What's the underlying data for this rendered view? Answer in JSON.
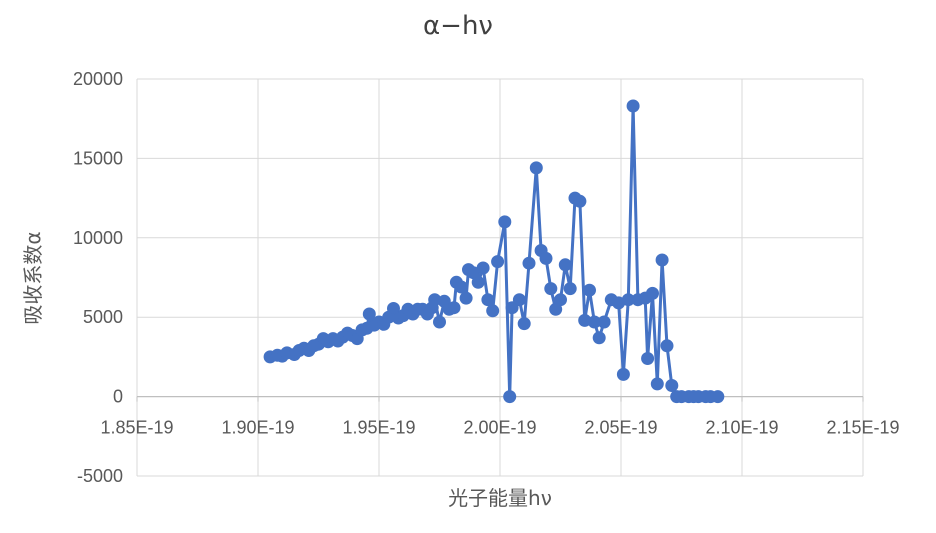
{
  "chart_data": {
    "type": "line",
    "title": "α−hν",
    "xlabel": "光子能量hν",
    "ylabel": "吸收系数α",
    "xlim": [
      1.85e-19,
      2.15e-19
    ],
    "ylim": [
      -5000,
      20000
    ],
    "x_ticks": [
      1.85e-19,
      1.9e-19,
      1.95e-19,
      2e-19,
      2.05e-19,
      2.1e-19,
      2.15e-19
    ],
    "x_tick_labels": [
      "1.85E-19",
      "1.90E-19",
      "1.95E-19",
      "2.00E-19",
      "2.05E-19",
      "2.10E-19",
      "2.15E-19"
    ],
    "y_ticks": [
      -5000,
      0,
      5000,
      10000,
      15000,
      20000
    ],
    "y_tick_labels": [
      "-5000",
      "0",
      "5000",
      "10000",
      "15000",
      "20000"
    ],
    "grid": true,
    "legend": "none",
    "series": [
      {
        "color": "#4472C4",
        "markers": true,
        "points": [
          [
            1.905e-19,
            2500
          ],
          [
            1.908e-19,
            2600
          ],
          [
            1.91e-19,
            2550
          ],
          [
            1.912e-19,
            2750
          ],
          [
            1.915e-19,
            2650
          ],
          [
            1.917e-19,
            2900
          ],
          [
            1.919e-19,
            3050
          ],
          [
            1.921e-19,
            2900
          ],
          [
            1.923e-19,
            3200
          ],
          [
            1.925e-19,
            3300
          ],
          [
            1.927e-19,
            3650
          ],
          [
            1.929e-19,
            3450
          ],
          [
            1.931e-19,
            3650
          ],
          [
            1.933e-19,
            3500
          ],
          [
            1.935e-19,
            3750
          ],
          [
            1.937e-19,
            4000
          ],
          [
            1.939e-19,
            3850
          ],
          [
            1.941e-19,
            3650
          ],
          [
            1.943e-19,
            4200
          ],
          [
            1.945e-19,
            4300
          ],
          [
            1.946e-19,
            5200
          ],
          [
            1.948e-19,
            4500
          ],
          [
            1.95e-19,
            4700
          ],
          [
            1.952e-19,
            4550
          ],
          [
            1.954e-19,
            5000
          ],
          [
            1.956e-19,
            5550
          ],
          [
            1.958e-19,
            4950
          ],
          [
            1.96e-19,
            5100
          ],
          [
            1.962e-19,
            5500
          ],
          [
            1.964e-19,
            5200
          ],
          [
            1.966e-19,
            5500
          ],
          [
            1.968e-19,
            5500
          ],
          [
            1.97e-19,
            5200
          ],
          [
            1.972e-19,
            5600
          ],
          [
            1.973e-19,
            6100
          ],
          [
            1.975e-19,
            4700
          ],
          [
            1.977e-19,
            6000
          ],
          [
            1.979e-19,
            5500
          ],
          [
            1.981e-19,
            5600
          ],
          [
            1.982e-19,
            7200
          ],
          [
            1.984e-19,
            6900
          ],
          [
            1.986e-19,
            6200
          ],
          [
            1.987e-19,
            8000
          ],
          [
            1.989e-19,
            7800
          ],
          [
            1.991e-19,
            7200
          ],
          [
            1.993e-19,
            8100
          ],
          [
            1.995e-19,
            6100
          ],
          [
            1.997e-19,
            5400
          ],
          [
            1.999e-19,
            8500
          ],
          [
            2.002e-19,
            11000
          ],
          [
            2.004e-19,
            0
          ],
          [
            2.005e-19,
            5600
          ],
          [
            2.008e-19,
            6100
          ],
          [
            2.01e-19,
            4600
          ],
          [
            2.012e-19,
            8400
          ],
          [
            2.015e-19,
            14400
          ],
          [
            2.017e-19,
            9200
          ],
          [
            2.019e-19,
            8700
          ],
          [
            2.021e-19,
            6800
          ],
          [
            2.023e-19,
            5500
          ],
          [
            2.025e-19,
            6100
          ],
          [
            2.027e-19,
            8300
          ],
          [
            2.029e-19,
            6800
          ],
          [
            2.031e-19,
            12500
          ],
          [
            2.033e-19,
            12300
          ],
          [
            2.035e-19,
            4800
          ],
          [
            2.037e-19,
            6700
          ],
          [
            2.039e-19,
            4700
          ],
          [
            2.041e-19,
            3700
          ],
          [
            2.043e-19,
            4700
          ],
          [
            2.046e-19,
            6100
          ],
          [
            2.049e-19,
            5900
          ],
          [
            2.051e-19,
            1400
          ],
          [
            2.053e-19,
            6100
          ],
          [
            2.055e-19,
            18300
          ],
          [
            2.057e-19,
            6100
          ],
          [
            2.06e-19,
            6200
          ],
          [
            2.061e-19,
            2400
          ],
          [
            2.063e-19,
            6500
          ],
          [
            2.065e-19,
            800
          ],
          [
            2.067e-19,
            8600
          ],
          [
            2.069e-19,
            3200
          ],
          [
            2.071e-19,
            700
          ],
          [
            2.073e-19,
            0
          ],
          [
            2.075e-19,
            0
          ],
          [
            2.078e-19,
            0
          ],
          [
            2.08e-19,
            0
          ],
          [
            2.082e-19,
            0
          ],
          [
            2.085e-19,
            0
          ],
          [
            2.087e-19,
            0
          ],
          [
            2.09e-19,
            0
          ]
        ]
      }
    ]
  }
}
